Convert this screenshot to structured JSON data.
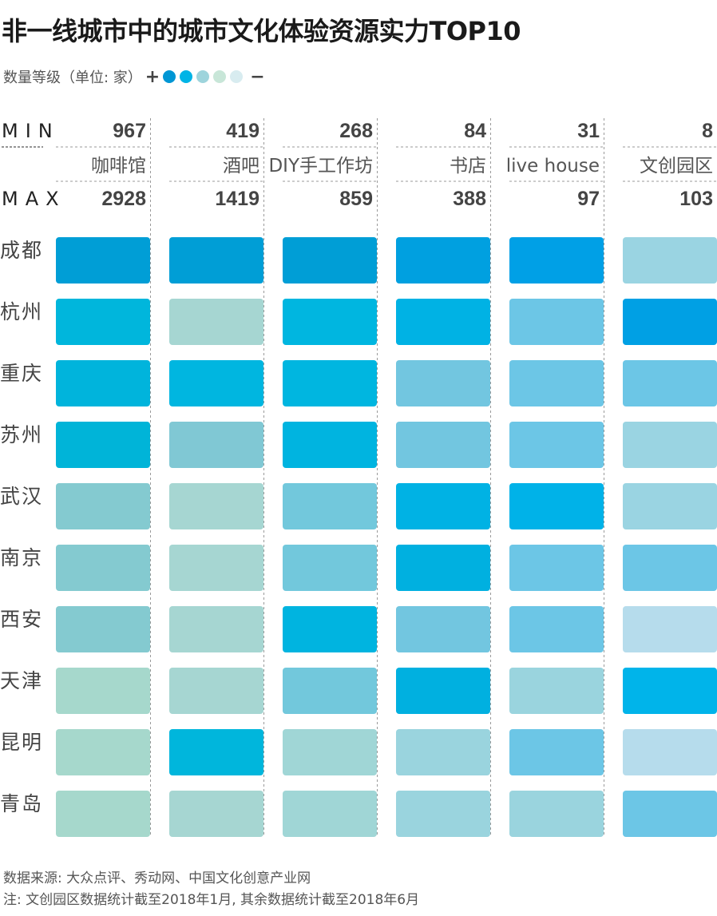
{
  "title": "非一线城市中的城市文化体验资源实力TOP10",
  "legend": {
    "label": "数量等级（单位: 家）",
    "plus": "+",
    "minus": "−",
    "colors": [
      "#0096d4",
      "#00b4e6",
      "#9ed4dc",
      "#c8e6d8",
      "#d8ecf0"
    ]
  },
  "min_label": "MIN",
  "max_label": "MAX",
  "footer": {
    "source": "数据来源: 大众点评、秀动网、中国文化创意产业网",
    "note": "注: 文创园区数据统计截至2018年1月, 其余数据统计截至2018年6月"
  },
  "chart_data": {
    "type": "heatmap",
    "columns": [
      "咖啡馆",
      "酒吧",
      "DIY手工作坊",
      "书店",
      "live house",
      "文创园区"
    ],
    "min": [
      967,
      419,
      268,
      84,
      31,
      8
    ],
    "max": [
      2928,
      1419,
      859,
      388,
      97,
      103
    ],
    "rows": [
      "成都",
      "杭州",
      "重庆",
      "苏州",
      "武汉",
      "南京",
      "西安",
      "天津",
      "昆明",
      "青岛"
    ],
    "cell_colors": [
      [
        "#009ed6",
        "#009ed6",
        "#009ed6",
        "#00a0e0",
        "#00a0e6",
        "#9ad4e2"
      ],
      [
        "#00b6dc",
        "#a6d6d2",
        "#00b6e0",
        "#00b2e4",
        "#6cc6e6",
        "#00a0e4"
      ],
      [
        "#00b4dc",
        "#00b6e0",
        "#00b6e0",
        "#72c6e0",
        "#6cc6e6",
        "#6cc6e6"
      ],
      [
        "#00b4d8",
        "#80c8d4",
        "#00b4e0",
        "#72c6e0",
        "#6cc6e6",
        "#9ad4e2"
      ],
      [
        "#84cad0",
        "#a6d6d2",
        "#72c8dc",
        "#00b2e4",
        "#00b2e8",
        "#9ad4e2"
      ],
      [
        "#84cad0",
        "#a6d6d2",
        "#72c8dc",
        "#00b0e0",
        "#6cc6e6",
        "#6cc6e6"
      ],
      [
        "#84cad0",
        "#a6d6d2",
        "#00b4e0",
        "#72c6e0",
        "#6cc6e6",
        "#b6dcec"
      ],
      [
        "#a6d8cc",
        "#a6d6d2",
        "#72c8dc",
        "#00b0e0",
        "#9ad4de",
        "#00b4ea"
      ],
      [
        "#a6d8cc",
        "#00b6dc",
        "#a0d6d6",
        "#9ad4de",
        "#6cc6e6",
        "#b6dcec"
      ],
      [
        "#a6d8cc",
        "#a6d6d2",
        "#a0d6d6",
        "#9ad4de",
        "#9ad4de",
        "#6cc6e6"
      ]
    ]
  }
}
